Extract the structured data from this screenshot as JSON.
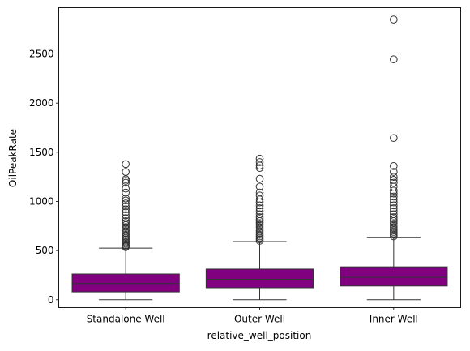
{
  "chart_data": {
    "type": "box",
    "xlabel": "relative_well_position",
    "ylabel": "OilPeakRate",
    "ylim": [
      -80,
      2970
    ],
    "yticks": [
      0,
      500,
      1000,
      1500,
      2000,
      2500
    ],
    "grid": false,
    "box_color": "#800080",
    "categories": [
      "Standalone Well",
      "Outer Well",
      "Inner Well"
    ],
    "boxes": [
      {
        "category": "Standalone Well",
        "whisker_low": 0,
        "q1": 80,
        "median": 165,
        "q3": 262,
        "whisker_high": 525,
        "outliers": [
          535,
          545,
          555,
          570,
          585,
          600,
          615,
          630,
          645,
          660,
          680,
          700,
          720,
          740,
          760,
          780,
          800,
          830,
          860,
          890,
          920,
          950,
          980,
          1010,
          1030,
          1090,
          1130,
          1190,
          1210,
          1225,
          1300,
          1380
        ]
      },
      {
        "category": "Outer Well",
        "whisker_low": 0,
        "q1": 122,
        "median": 208,
        "q3": 312,
        "whisker_high": 592,
        "outliers": [
          600,
          615,
          630,
          645,
          660,
          680,
          700,
          720,
          740,
          760,
          780,
          800,
          820,
          840,
          870,
          900,
          930,
          960,
          990,
          1020,
          1060,
          1090,
          1150,
          1230,
          1340,
          1365,
          1400,
          1435
        ]
      },
      {
        "category": "Inner Well",
        "whisker_low": 0,
        "q1": 140,
        "median": 228,
        "q3": 335,
        "whisker_high": 635,
        "outliers": [
          645,
          660,
          675,
          690,
          705,
          720,
          740,
          760,
          780,
          800,
          820,
          840,
          870,
          900,
          930,
          960,
          990,
          1020,
          1050,
          1080,
          1110,
          1150,
          1190,
          1220,
          1250,
          1300,
          1360,
          1645,
          2445,
          2850
        ]
      }
    ]
  }
}
